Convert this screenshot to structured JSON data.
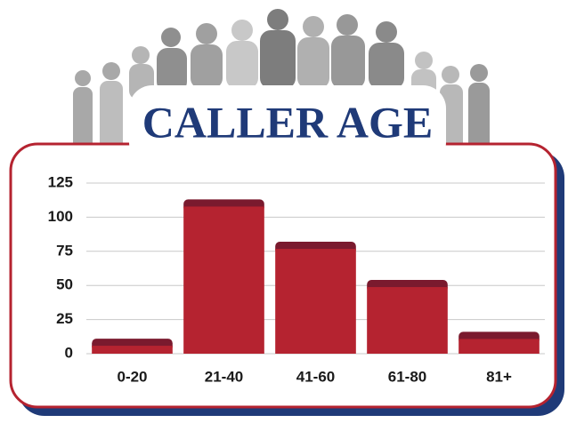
{
  "chart_data": {
    "type": "bar",
    "title": "CALLER AGE",
    "categories": [
      "0-20",
      "21-40",
      "41-60",
      "61-80",
      "81+"
    ],
    "values": [
      11,
      113,
      82,
      54,
      16
    ],
    "color": "#b52330",
    "cap_color": "#7a1a2e",
    "ylim": [
      0,
      125
    ],
    "yticks": [
      0,
      25,
      50,
      75,
      100,
      125
    ],
    "grid": true
  }
}
